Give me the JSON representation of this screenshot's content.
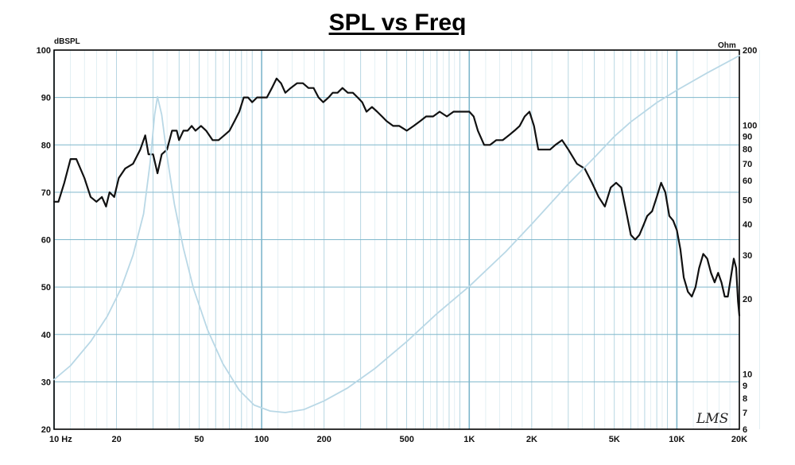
{
  "title": "SPL vs Freq",
  "signature": "LMS",
  "colors": {
    "grid": "#7fb7cc",
    "spl_line": "#111111",
    "impedance_line": "#b9d8e6",
    "border": "#000000"
  },
  "chart_data": {
    "type": "line",
    "title": "SPL vs Freq",
    "x_scale": "log",
    "xlim": [
      10,
      20000
    ],
    "ylim_left": [
      20,
      100
    ],
    "ylim_right": [
      6,
      200
    ],
    "y_right_scale": "log",
    "left_unit": "dBSPL",
    "right_unit": "Ohm",
    "x_tick_labels": [
      {
        "v": 10,
        "label": "10  Hz"
      },
      {
        "v": 20,
        "label": "20"
      },
      {
        "v": 50,
        "label": "50"
      },
      {
        "v": 100,
        "label": "100"
      },
      {
        "v": 200,
        "label": "200"
      },
      {
        "v": 500,
        "label": "500"
      },
      {
        "v": 1000,
        "label": "1K"
      },
      {
        "v": 2000,
        "label": "2K"
      },
      {
        "v": 5000,
        "label": "5K"
      },
      {
        "v": 10000,
        "label": "10K"
      },
      {
        "v": 20000,
        "label": "20K"
      }
    ],
    "y_left_ticks": [
      100,
      90,
      80,
      70,
      60,
      50,
      40,
      30,
      20
    ],
    "y_right_ticks": [
      {
        "v": 200,
        "label": "200"
      },
      {
        "v": 100,
        "label": "100"
      },
      {
        "v": 90,
        "label": "90"
      },
      {
        "v": 80,
        "label": "80"
      },
      {
        "v": 70,
        "label": "70"
      },
      {
        "v": 60,
        "label": "60"
      },
      {
        "v": 50,
        "label": "50"
      },
      {
        "v": 40,
        "label": "40"
      },
      {
        "v": 30,
        "label": "30"
      },
      {
        "v": 20,
        "label": "20"
      },
      {
        "v": 10,
        "label": "10"
      },
      {
        "v": 9,
        "label": "9"
      },
      {
        "v": 8,
        "label": "8"
      },
      {
        "v": 7,
        "label": "7"
      },
      {
        "v": 6,
        "label": "6"
      }
    ],
    "series": [
      {
        "axis": "left",
        "points": [
          [
            10,
            68
          ],
          [
            10.5,
            68
          ],
          [
            11.2,
            72
          ],
          [
            12,
            77
          ],
          [
            12.8,
            77
          ],
          [
            14,
            73
          ],
          [
            15,
            69
          ],
          [
            16,
            68
          ],
          [
            17,
            69
          ],
          [
            17.8,
            67
          ],
          [
            18.5,
            70
          ],
          [
            19.5,
            69
          ],
          [
            20.5,
            73
          ],
          [
            22,
            75
          ],
          [
            24,
            76
          ],
          [
            26,
            79
          ],
          [
            27.5,
            82
          ],
          [
            28.5,
            78
          ],
          [
            30,
            78
          ],
          [
            31.5,
            74
          ],
          [
            33,
            78
          ],
          [
            35,
            79
          ],
          [
            37,
            83
          ],
          [
            39,
            83
          ],
          [
            40,
            81
          ],
          [
            42,
            83
          ],
          [
            44,
            83
          ],
          [
            46,
            84
          ],
          [
            48,
            83
          ],
          [
            51,
            84
          ],
          [
            54,
            83
          ],
          [
            58,
            81
          ],
          [
            62,
            81
          ],
          [
            66,
            82
          ],
          [
            70,
            83
          ],
          [
            74,
            85
          ],
          [
            78,
            87
          ],
          [
            82,
            90
          ],
          [
            86,
            90
          ],
          [
            90,
            89
          ],
          [
            95,
            90
          ],
          [
            100,
            90
          ],
          [
            106,
            90
          ],
          [
            112,
            92
          ],
          [
            118,
            94
          ],
          [
            124,
            93
          ],
          [
            130,
            91
          ],
          [
            138,
            92
          ],
          [
            148,
            93
          ],
          [
            158,
            93
          ],
          [
            168,
            92
          ],
          [
            178,
            92
          ],
          [
            188,
            90
          ],
          [
            198,
            89
          ],
          [
            210,
            90
          ],
          [
            220,
            91
          ],
          [
            232,
            91
          ],
          [
            245,
            92
          ],
          [
            260,
            91
          ],
          [
            275,
            91
          ],
          [
            290,
            90
          ],
          [
            305,
            89
          ],
          [
            320,
            87
          ],
          [
            340,
            88
          ],
          [
            360,
            87
          ],
          [
            380,
            86
          ],
          [
            400,
            85
          ],
          [
            430,
            84
          ],
          [
            460,
            84
          ],
          [
            500,
            83
          ],
          [
            540,
            84
          ],
          [
            580,
            85
          ],
          [
            620,
            86
          ],
          [
            670,
            86
          ],
          [
            720,
            87
          ],
          [
            780,
            86
          ],
          [
            840,
            87
          ],
          [
            900,
            87
          ],
          [
            960,
            87
          ],
          [
            1000,
            87
          ],
          [
            1050,
            86
          ],
          [
            1100,
            83
          ],
          [
            1180,
            80
          ],
          [
            1260,
            80
          ],
          [
            1350,
            81
          ],
          [
            1450,
            81
          ],
          [
            1550,
            82
          ],
          [
            1650,
            83
          ],
          [
            1750,
            84
          ],
          [
            1850,
            86
          ],
          [
            1950,
            87
          ],
          [
            2050,
            84
          ],
          [
            2150,
            79
          ],
          [
            2300,
            79
          ],
          [
            2450,
            79
          ],
          [
            2600,
            80
          ],
          [
            2800,
            81
          ],
          [
            3000,
            79
          ],
          [
            3300,
            76
          ],
          [
            3600,
            75
          ],
          [
            3900,
            72
          ],
          [
            4200,
            69
          ],
          [
            4500,
            67
          ],
          [
            4800,
            71
          ],
          [
            5100,
            72
          ],
          [
            5400,
            71
          ],
          [
            5700,
            66
          ],
          [
            6000,
            61
          ],
          [
            6300,
            60
          ],
          [
            6600,
            61
          ],
          [
            6900,
            63
          ],
          [
            7200,
            65
          ],
          [
            7600,
            66
          ],
          [
            8000,
            69
          ],
          [
            8400,
            72
          ],
          [
            8800,
            70
          ],
          [
            9200,
            65
          ],
          [
            9600,
            64
          ],
          [
            10000,
            62
          ],
          [
            10400,
            58
          ],
          [
            10800,
            52
          ],
          [
            11300,
            49
          ],
          [
            11800,
            48
          ],
          [
            12300,
            50
          ],
          [
            12800,
            54
          ],
          [
            13400,
            57
          ],
          [
            14000,
            56
          ],
          [
            14600,
            53
          ],
          [
            15200,
            51
          ],
          [
            15800,
            53
          ],
          [
            16400,
            51
          ],
          [
            17000,
            48
          ],
          [
            17600,
            48
          ],
          [
            18200,
            52
          ],
          [
            18800,
            56
          ],
          [
            19300,
            54
          ],
          [
            19700,
            47
          ],
          [
            20000,
            44
          ]
        ]
      },
      {
        "axis": "right",
        "points": [
          [
            10,
            9.5
          ],
          [
            12,
            10.8
          ],
          [
            15,
            13.5
          ],
          [
            18,
            17
          ],
          [
            21,
            22
          ],
          [
            24,
            30
          ],
          [
            27,
            44
          ],
          [
            29,
            70
          ],
          [
            30.5,
            110
          ],
          [
            31.5,
            130
          ],
          [
            33,
            110
          ],
          [
            35,
            75
          ],
          [
            38,
            48
          ],
          [
            42,
            32
          ],
          [
            47,
            22
          ],
          [
            55,
            15
          ],
          [
            65,
            11
          ],
          [
            78,
            8.6
          ],
          [
            92,
            7.5
          ],
          [
            110,
            7.1
          ],
          [
            130,
            7.0
          ],
          [
            160,
            7.2
          ],
          [
            200,
            7.8
          ],
          [
            260,
            8.8
          ],
          [
            350,
            10.5
          ],
          [
            500,
            13.5
          ],
          [
            700,
            17.5
          ],
          [
            1000,
            22.5
          ],
          [
            1500,
            31
          ],
          [
            2000,
            40
          ],
          [
            3000,
            58
          ],
          [
            4000,
            74
          ],
          [
            5000,
            90
          ],
          [
            6000,
            103
          ],
          [
            8000,
            123
          ],
          [
            10000,
            138
          ],
          [
            14000,
            162
          ],
          [
            20000,
            190
          ]
        ]
      }
    ]
  }
}
